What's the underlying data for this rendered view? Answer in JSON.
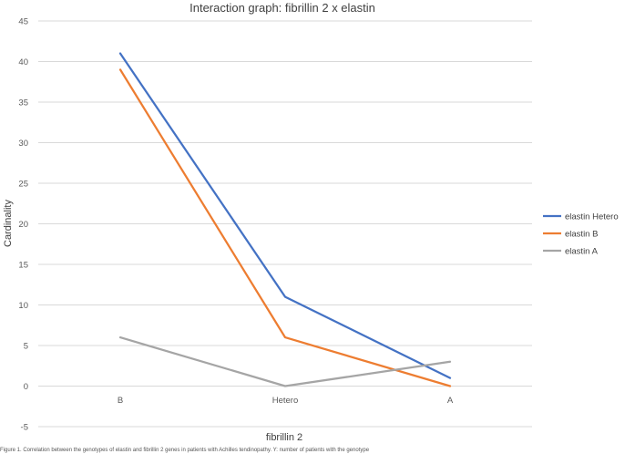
{
  "chart_data": {
    "type": "line",
    "title": "Interaction graph: fibrillin 2 x elastin",
    "xlabel": "fibrillin 2",
    "ylabel": "Cardinality",
    "categories": [
      "B",
      "Hetero",
      "A"
    ],
    "ylim": [
      -5,
      45
    ],
    "yticks": [
      -5,
      0,
      5,
      10,
      15,
      20,
      25,
      30,
      35,
      40,
      45
    ],
    "grid": true,
    "legend_position": "right",
    "series": [
      {
        "name": "elastin Hetero",
        "color": "#4472c4",
        "values": [
          41,
          11,
          1
        ]
      },
      {
        "name": "elastin B",
        "color": "#ed7d31",
        "values": [
          39,
          6,
          0
        ]
      },
      {
        "name": "elastin A",
        "color": "#a5a5a5",
        "values": [
          6,
          0,
          3
        ]
      }
    ]
  },
  "caption": "Figure 1. Correlation between the genotypes of elastin and fibrillin 2 genes in patients with Achilles tendinopathy. Y: number of patients with the genotype"
}
